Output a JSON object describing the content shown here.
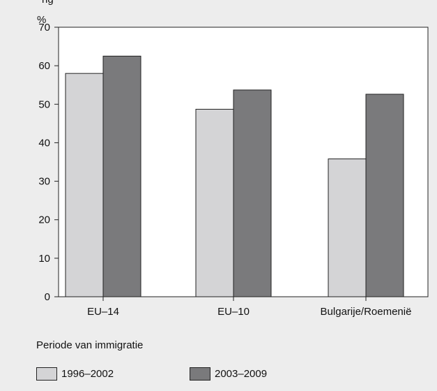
{
  "partial_title": "ng",
  "chart_data": {
    "type": "bar",
    "unit_label": "%",
    "categories": [
      "EU–14",
      "EU–10",
      "Bulgarije/Roemenië"
    ],
    "series": [
      {
        "name": "1996–2002",
        "values": [
          58,
          48.7,
          35.8
        ],
        "color": "#d4d4d6"
      },
      {
        "name": "2003–2009",
        "values": [
          62.5,
          53.7,
          52.6
        ],
        "color": "#7a7a7c"
      }
    ],
    "ylim": [
      0,
      70
    ],
    "yticks": [
      "0",
      "10",
      "20",
      "30",
      "40",
      "50",
      "60",
      "70"
    ],
    "grid": false,
    "legend": {
      "title": "Periode van immigratie",
      "placement": "bottom-left"
    }
  }
}
